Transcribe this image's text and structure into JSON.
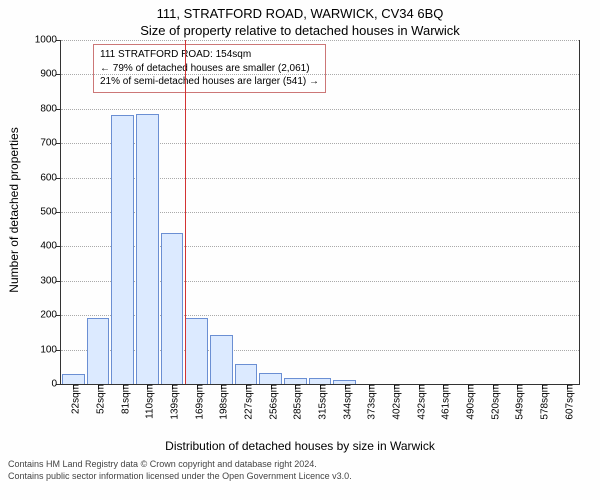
{
  "titles": {
    "address": "111, STRATFORD ROAD, WARWICK, CV34 6BQ",
    "subtitle": "Size of property relative to detached houses in Warwick"
  },
  "annotation": {
    "line1": "111 STRATFORD ROAD: 154sqm",
    "line2": "← 79% of detached houses are smaller (2,061)",
    "line3": "21% of semi-detached houses are larger (541) →"
  },
  "chart": {
    "type": "histogram",
    "y_axis_title": "Number of detached properties",
    "x_axis_title": "Distribution of detached houses by size in Warwick",
    "ylim": [
      0,
      1000
    ],
    "ytick_step": 100,
    "categories": [
      "22sqm",
      "52sqm",
      "81sqm",
      "110sqm",
      "139sqm",
      "169sqm",
      "198sqm",
      "227sqm",
      "256sqm",
      "285sqm",
      "315sqm",
      "344sqm",
      "373sqm",
      "402sqm",
      "432sqm",
      "461sqm",
      "490sqm",
      "520sqm",
      "549sqm",
      "578sqm",
      "607sqm"
    ],
    "values": [
      25,
      190,
      780,
      783,
      435,
      190,
      140,
      55,
      30,
      15,
      15,
      10,
      0,
      0,
      0,
      0,
      0,
      0,
      0,
      0,
      0
    ],
    "bar_fill": "#dceaff",
    "bar_border": "#6b8fd3",
    "grid_color": "#aaaaaa",
    "marker_value": 154,
    "marker_color": "#d33333",
    "annot_border": "#cc7777",
    "background_color": "#fefefe",
    "title_fontsize": 13,
    "label_fontsize": 10,
    "axis_title_fontsize": 12
  },
  "footer": {
    "line1": "Contains HM Land Registry data © Crown copyright and database right 2024.",
    "line2": "Contains public sector information licensed under the Open Government Licence v3.0."
  }
}
